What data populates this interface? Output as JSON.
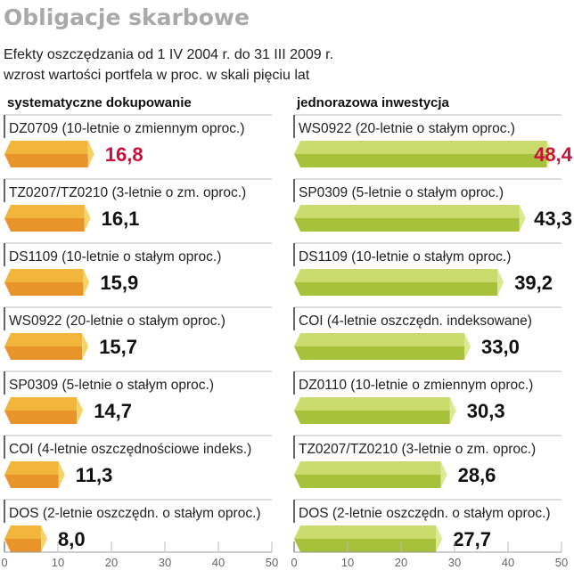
{
  "title": "Obligacje skarbowe",
  "subtitle_1": "Efekty oszczędzania od 1 IV 2004 r. do 31 III 2009 r.",
  "subtitle_2": "wzrost wartości portfela w proc. w skali pięciu lat",
  "colors": {
    "highlight": "#c8103c",
    "orange_top": "#f3b63c",
    "orange_bottom": "#e8942a",
    "orange_end": "#f6d36a",
    "green_top": "#c9db6c",
    "green_bottom": "#a8c13a",
    "green_end": "#dbe894"
  },
  "chart_data": [
    {
      "type": "bar",
      "title": "systematyczne dokupowanie",
      "xlim": [
        0,
        50
      ],
      "ticks": [
        "0",
        "10",
        "20",
        "30",
        "40",
        "50"
      ],
      "categories": [
        "DZ0709 (10-letnie o zmiennym oproc.)",
        "TZ0207/TZ0210 (3-letnie o zm. oproc.)",
        "DS1109 (10-letnie o stałym oproc.)",
        "WS0922 (20-letnie o stałym oproc.)",
        "SP0309 (5-letnie o stałym oproc.)",
        "COI (4-letnie oszczędnościowe indeks.)",
        "DOS (2-letnie oszczędn. o stałym oproc.)"
      ],
      "values": [
        16.8,
        16.1,
        15.9,
        15.7,
        14.7,
        11.3,
        8.0
      ],
      "value_labels": [
        "16,8",
        "16,1",
        "15,9",
        "15,7",
        "14,7",
        "11,3",
        "8,0"
      ],
      "highlight_index": 0
    },
    {
      "type": "bar",
      "title": "jednorazowa inwestycja",
      "xlim": [
        0,
        50
      ],
      "ticks": [
        "0",
        "10",
        "20",
        "30",
        "40",
        "50"
      ],
      "categories": [
        "WS0922 (20-letnie o stałym oproc.)",
        "SP0309 (5-letnie o stałym oproc.)",
        "DS1109 (10-letnie o stałym oproc.)",
        "COI (4-letnie oszczędn. indeksowane)",
        "DZ0110 (10-letnie o zmiennym oproc.)",
        "TZ0207/TZ0210 (3-letnie o zm. oproc.)",
        "DOS (2-letnie oszczędn. o stałym oproc.)"
      ],
      "values": [
        48.4,
        43.3,
        39.2,
        33.0,
        30.3,
        28.6,
        27.7
      ],
      "value_labels": [
        "48,4",
        "43,3",
        "39,2",
        "33,0",
        "30,3",
        "28,6",
        "27,7"
      ],
      "highlight_index": 0
    }
  ]
}
